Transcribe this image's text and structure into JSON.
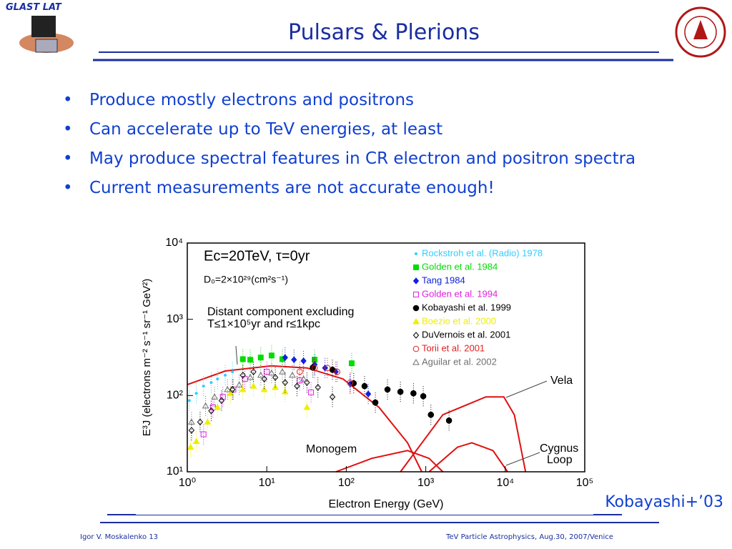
{
  "header": {
    "logo_text": "GLAST LAT",
    "title": "Pulsars & Plerions"
  },
  "bullets": [
    "Produce mostly electrons and positrons",
    "Can accelerate up to TeV energies, at least",
    "May produce spectral features in CR electron and positron spectra",
    "Current measurements are not accurate enough!"
  ],
  "chart_data": {
    "type": "scatter",
    "xscale": "log",
    "yscale": "log",
    "xlabel": "Electron Energy (GeV)",
    "ylabel": "E³J (electrons m⁻² s⁻¹ sr⁻¹ GeV²)",
    "xlim": [
      1,
      100000
    ],
    "ylim": [
      10,
      10000
    ],
    "xticks": [
      {
        "value": 1,
        "label": "10⁰"
      },
      {
        "value": 10,
        "label": "10¹"
      },
      {
        "value": 100,
        "label": "10²"
      },
      {
        "value": 1000,
        "label": "10³"
      },
      {
        "value": 10000,
        "label": "10⁴"
      },
      {
        "value": 100000,
        "label": "10⁵"
      }
    ],
    "yticks": [
      {
        "value": 10,
        "label": "10¹"
      },
      {
        "value": 100,
        "label": "10²"
      },
      {
        "value": 1000,
        "label": "10³"
      },
      {
        "value": 10000,
        "label": "10⁴"
      }
    ],
    "annotations": [
      "Ec=20TeV, τ=0yr",
      "D₀=2×10²⁹(cm²s⁻¹)",
      "Distant component excluding",
      "T≤1×10⁵yr and r≤1kpc",
      "Vela",
      "Monogem",
      "Cygnus",
      "Loop"
    ],
    "series": [
      {
        "name": "Rockstroh et al. (Radio) 1978",
        "color": "#33ccff",
        "marker": "dot",
        "x": [
          1.06,
          1.3,
          1.6,
          2.0,
          2.4,
          3.0,
          3.7
        ],
        "values": [
          86,
          107,
          133,
          148,
          165,
          185,
          205
        ]
      },
      {
        "name": "Golden et al. 1984",
        "color": "#00dd00",
        "marker": "square",
        "x": [
          5.0,
          6.2,
          8.4,
          11.5,
          15.7,
          40,
          117
        ],
        "values": [
          300,
          295,
          315,
          335,
          300,
          295,
          265
        ]
      },
      {
        "name": "Tang 1984",
        "color": "#1020e0",
        "marker": "diamond",
        "x": [
          17,
          22,
          29,
          40,
          54,
          74,
          112,
          189
        ],
        "values": [
          315,
          295,
          285,
          255,
          230,
          205,
          142,
          105
        ]
      },
      {
        "name": "Golden et al. 1994",
        "color": "#e020e0",
        "marker": "open-square",
        "x": [
          1.6,
          2.1,
          2.8,
          3.8,
          5.3,
          10,
          26,
          36
        ],
        "values": [
          31,
          70,
          96,
          120,
          165,
          205,
          158,
          110
        ]
      },
      {
        "name": "Kobayashi et al. 1999",
        "color": "#000000",
        "marker": "circle",
        "x": [
          38,
          67,
          124,
          170,
          232,
          330,
          480,
          700,
          930,
          1160,
          1960
        ],
        "values": [
          233,
          218,
          145,
          133,
          81,
          120,
          112,
          107,
          98,
          56,
          47
        ]
      },
      {
        "name": "Boezio et al. 2000",
        "color": "#eeee00",
        "marker": "triangle",
        "x": [
          1.1,
          1.3,
          1.8,
          2.4,
          3.5,
          5.0,
          6.8,
          9.3,
          12.8,
          17,
          32
        ],
        "values": [
          21,
          25,
          45,
          70,
          107,
          120,
          133,
          120,
          128,
          112,
          70
        ]
      },
      {
        "name": "DuVernois et al. 2001",
        "color": "#000000",
        "marker": "open-diamond",
        "x": [
          1.13,
          1.45,
          2.0,
          2.7,
          3.7,
          5.0,
          6.8,
          9.3,
          12.8,
          17,
          24,
          32,
          44,
          67
        ],
        "values": [
          35,
          45,
          63,
          86,
          120,
          185,
          205,
          165,
          173,
          148,
          133,
          148,
          128,
          96
        ]
      },
      {
        "name": "Torii et al. 2001",
        "color": "#e02020",
        "marker": "open-circle",
        "x": [
          26,
          40,
          58,
          77,
          112
        ],
        "values": [
          205,
          230,
          230,
          205,
          148
        ]
      },
      {
        "name": "Aguilar et al. 2002",
        "color": "#707070",
        "marker": "open-triangle",
        "x": [
          1.13,
          1.7,
          2.2,
          3.2,
          4.5,
          6.2,
          8.4,
          11.5,
          15.7,
          21,
          29
        ],
        "values": [
          45,
          73,
          96,
          120,
          138,
          173,
          185,
          197,
          205,
          185,
          165
        ]
      }
    ],
    "curves": [
      {
        "color": "#e01010",
        "x": [
          1,
          3,
          11.5,
          32,
          91,
          258,
          590,
          890
        ],
        "values": [
          139,
          210,
          245,
          230,
          165,
          70,
          24,
          10
        ]
      },
      {
        "color": "#e01010",
        "x": [
          480,
          1640,
          5700,
          9600,
          13000,
          18000
        ],
        "values": [
          10,
          56,
          96,
          96,
          56,
          10
        ]
      },
      {
        "color": "#e01010",
        "x": [
          74,
          210,
          590,
          1100,
          1640
        ],
        "values": [
          10,
          15,
          19,
          15,
          10
        ]
      },
      {
        "color": "#e01010",
        "x": [
          1100,
          2500,
          3800,
          7000,
          10700
        ],
        "values": [
          10,
          21,
          24,
          19,
          10
        ]
      }
    ]
  },
  "caption": "Kobayashi+’03",
  "footer": {
    "left": "Igor V. Moskalenko  13",
    "right": "TeV Particle Astrophysics, Aug.30, 2007/Venice"
  }
}
